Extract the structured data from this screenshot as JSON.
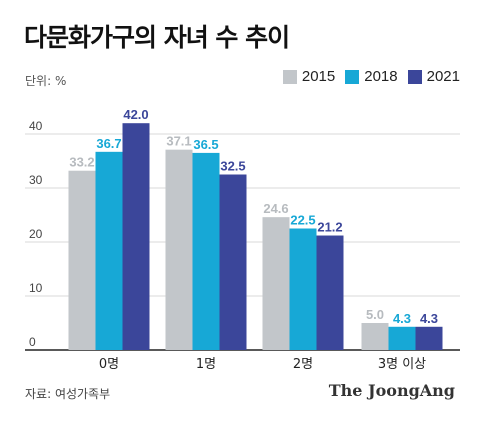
{
  "header": {
    "title": "다문화가구의 자녀 수 추이",
    "unit": "단위: %"
  },
  "footer": {
    "source": "자료: 여성가족부",
    "brand": "The JoongAng"
  },
  "colors": {
    "2015": "#c2c6ca",
    "2018": "#17a8d6",
    "2021": "#3b469a",
    "grid": "#d9d9d9",
    "axis_text": "#444444"
  },
  "chart_data": {
    "type": "bar",
    "title": "다문화가구의 자녀 수 추이",
    "xlabel": "",
    "ylabel": "단위: %",
    "categories": [
      "0명",
      "1명",
      "2명",
      "3명 이상"
    ],
    "series": [
      {
        "name": "2015",
        "values": [
          33.2,
          37.1,
          24.6,
          5.0
        ],
        "labels": [
          "33.2",
          "37.1",
          "24.6",
          "5.0"
        ]
      },
      {
        "name": "2018",
        "values": [
          36.7,
          36.5,
          22.5,
          4.3
        ],
        "labels": [
          "36.7",
          "36.5",
          "22.5",
          "4.3"
        ]
      },
      {
        "name": "2021",
        "values": [
          42.0,
          32.5,
          21.2,
          4.3
        ],
        "labels": [
          "42.0",
          "32.5",
          "21.2",
          "4.3"
        ]
      }
    ],
    "ylim": [
      0,
      45
    ],
    "yticks": [
      "0",
      "10",
      "20",
      "30",
      "40"
    ],
    "grid": true,
    "legend": "top-right"
  }
}
